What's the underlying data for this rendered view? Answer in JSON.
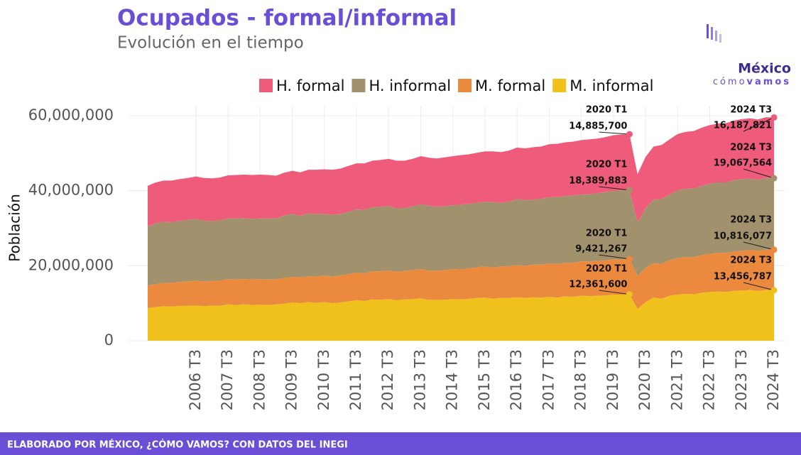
{
  "header": {
    "title": "Ocupados - formal/informal",
    "subtitle": "Evolución en el tiempo"
  },
  "logo": {
    "top": "México",
    "bottom_light": "cómo",
    "bottom_bold": "vamos"
  },
  "footer": "ELABORADO POR MÉXICO, ¿CÓMO VAMOS? CON DATOS DEL INEGI",
  "chart_data": {
    "type": "stacked_area",
    "y_label": "Población",
    "grid": true,
    "categories": [
      "2005 T1",
      "2005 T2",
      "2005 T3",
      "2005 T4",
      "2006 T1",
      "2006 T2",
      "2006 T3",
      "2006 T4",
      "2007 T1",
      "2007 T2",
      "2007 T3",
      "2007 T4",
      "2008 T1",
      "2008 T2",
      "2008 T3",
      "2008 T4",
      "2009 T1",
      "2009 T2",
      "2009 T3",
      "2009 T4",
      "2010 T1",
      "2010 T2",
      "2010 T3",
      "2010 T4",
      "2011 T1",
      "2011 T2",
      "2011 T3",
      "2011 T4",
      "2012 T1",
      "2012 T2",
      "2012 T3",
      "2012 T4",
      "2013 T1",
      "2013 T2",
      "2013 T3",
      "2013 T4",
      "2014 T1",
      "2014 T2",
      "2014 T3",
      "2014 T4",
      "2015 T1",
      "2015 T2",
      "2015 T3",
      "2015 T4",
      "2016 T1",
      "2016 T2",
      "2016 T3",
      "2016 T4",
      "2017 T1",
      "2017 T2",
      "2017 T3",
      "2017 T4",
      "2018 T1",
      "2018 T2",
      "2018 T3",
      "2018 T4",
      "2019 T1",
      "2019 T2",
      "2019 T3",
      "2019 T4",
      "2020 T1",
      "2020 T2",
      "2020 T3",
      "2020 T4",
      "2021 T1",
      "2021 T2",
      "2021 T3",
      "2021 T4",
      "2022 T1",
      "2022 T2",
      "2022 T3",
      "2022 T4",
      "2023 T1",
      "2023 T2",
      "2023 T3",
      "2023 T4",
      "2024 T1",
      "2024 T2",
      "2024 T3"
    ],
    "xticks": [
      "2006 T3",
      "2007 T3",
      "2008 T3",
      "2009 T3",
      "2010 T3",
      "2011 T3",
      "2012 T3",
      "2013 T3",
      "2014 T3",
      "2015 T3",
      "2016 T3",
      "2017 T3",
      "2018 T3",
      "2019 T3",
      "2020 T3",
      "2021 T3",
      "2022 T3",
      "2023 T3",
      "2024 T3"
    ],
    "ylim": [
      0,
      60000000
    ],
    "yticks": [
      0,
      {
        "value": 20000000,
        "label": "20,000,000"
      },
      {
        "value": 40000000,
        "label": "40,000,000"
      },
      {
        "value": 60000000,
        "label": "60,000,000"
      }
    ],
    "series": [
      {
        "name": "H. formal",
        "color": "#ef5b7a",
        "values": [
          10800000,
          10900000,
          11000000,
          11100000,
          11100000,
          11200000,
          11300000,
          11400000,
          11400000,
          11400000,
          11500000,
          11600000,
          11600000,
          11700000,
          11700000,
          11600000,
          11400000,
          11400000,
          11500000,
          11600000,
          11600000,
          11800000,
          11900000,
          12000000,
          12100000,
          12200000,
          12300000,
          12400000,
          12400000,
          12500000,
          12600000,
          12600000,
          12600000,
          12700000,
          12800000,
          12800000,
          12900000,
          13000000,
          13100000,
          13200000,
          13200000,
          13300000,
          13400000,
          13500000,
          13500000,
          13600000,
          13700000,
          13800000,
          13900000,
          14000000,
          14100000,
          14200000,
          14300000,
          14400000,
          14500000,
          14600000,
          14600000,
          14700000,
          14800000,
          14900000,
          14885700,
          12900000,
          13600000,
          14200000,
          14400000,
          14700000,
          15000000,
          15200000,
          15300000,
          15500000,
          15600000,
          15700000,
          15800000,
          15900000,
          16000000,
          16100000,
          16100000,
          16200000,
          16187821
        ],
        "value_labels": [
          null,
          null,
          null,
          null,
          null,
          null,
          null,
          null,
          null,
          null,
          null,
          null,
          null,
          null,
          null,
          null,
          null,
          null,
          null,
          null,
          null,
          null,
          null,
          null,
          null,
          null,
          null,
          null,
          null,
          null,
          null,
          null,
          null,
          null,
          null,
          null,
          null,
          null,
          null,
          null,
          null,
          null,
          null,
          null,
          null,
          null,
          null,
          null,
          null,
          null,
          null,
          null,
          null,
          null,
          null,
          null,
          null,
          null,
          null,
          null,
          "14,885,700",
          null,
          null,
          null,
          null,
          null,
          null,
          null,
          null,
          null,
          null,
          null,
          null,
          null,
          null,
          null,
          null,
          null,
          "16,187,821"
        ]
      },
      {
        "name": "H. informal",
        "color": "#a1926d",
        "values": [
          15800000,
          16200000,
          16300000,
          16200000,
          16300000,
          16400000,
          16500000,
          16200000,
          15900000,
          16100000,
          16100000,
          16300000,
          16200000,
          16200000,
          16100000,
          16300000,
          16200000,
          16700000,
          16800000,
          16400000,
          16800000,
          16700000,
          16400000,
          16500000,
          16400000,
          16600000,
          16800000,
          16900000,
          17100000,
          17200000,
          17200000,
          17000000,
          16800000,
          17000000,
          17300000,
          17300000,
          17000000,
          17100000,
          17000000,
          17300000,
          17200000,
          17200000,
          17300000,
          17500000,
          17000000,
          17200000,
          17600000,
          17500000,
          17400000,
          17500000,
          17700000,
          17800000,
          17800000,
          17900000,
          17800000,
          18000000,
          18000000,
          18200000,
          18300000,
          18400000,
          18389883,
          14200000,
          16000000,
          16900000,
          17300000,
          17500000,
          18100000,
          18200000,
          18300000,
          18500000,
          18700000,
          18800000,
          18800000,
          19000000,
          19100000,
          19000000,
          18900000,
          19100000,
          19067564
        ],
        "value_labels": [
          null,
          null,
          null,
          null,
          null,
          null,
          null,
          null,
          null,
          null,
          null,
          null,
          null,
          null,
          null,
          null,
          null,
          null,
          null,
          null,
          null,
          null,
          null,
          null,
          null,
          null,
          null,
          null,
          null,
          null,
          null,
          null,
          null,
          null,
          null,
          null,
          null,
          null,
          null,
          null,
          null,
          null,
          null,
          null,
          null,
          null,
          null,
          null,
          null,
          null,
          null,
          null,
          null,
          null,
          null,
          null,
          null,
          null,
          null,
          null,
          "18,389,883",
          null,
          null,
          null,
          null,
          null,
          null,
          null,
          null,
          null,
          null,
          null,
          null,
          null,
          null,
          null,
          null,
          null,
          "19,067,564"
        ]
      },
      {
        "name": "M. formal",
        "color": "#eb8a3f",
        "values": [
          6000000,
          6100000,
          6200000,
          6300000,
          6400000,
          6500000,
          6600000,
          6600000,
          6600000,
          6700000,
          6800000,
          6800000,
          6800000,
          6800000,
          6900000,
          6800000,
          6700000,
          6800000,
          6800000,
          6900000,
          6900000,
          7000000,
          7100000,
          7100000,
          7200000,
          7300000,
          7400000,
          7400000,
          7500000,
          7600000,
          7600000,
          7600000,
          7600000,
          7700000,
          7800000,
          7800000,
          7800000,
          7900000,
          8000000,
          8000000,
          8100000,
          8200000,
          8300000,
          8300000,
          8400000,
          8500000,
          8600000,
          8600000,
          8700000,
          8800000,
          8900000,
          9000000,
          9000000,
          9100000,
          9200000,
          9200000,
          9300000,
          9300000,
          9400000,
          9400000,
          9421267,
          8800000,
          9100000,
          9200000,
          9300000,
          9500000,
          9700000,
          9800000,
          9900000,
          10000000,
          10200000,
          10300000,
          10400000,
          10500000,
          10600000,
          10700000,
          10700000,
          10800000,
          10816077
        ],
        "value_labels": [
          null,
          null,
          null,
          null,
          null,
          null,
          null,
          null,
          null,
          null,
          null,
          null,
          null,
          null,
          null,
          null,
          null,
          null,
          null,
          null,
          null,
          null,
          null,
          null,
          null,
          null,
          null,
          null,
          null,
          null,
          null,
          null,
          null,
          null,
          null,
          null,
          null,
          null,
          null,
          null,
          null,
          null,
          null,
          null,
          null,
          null,
          null,
          null,
          null,
          null,
          null,
          null,
          null,
          null,
          null,
          null,
          null,
          null,
          null,
          null,
          "9,421,267",
          null,
          null,
          null,
          null,
          null,
          null,
          null,
          null,
          null,
          null,
          null,
          null,
          null,
          null,
          null,
          null,
          null,
          "10,816,077"
        ]
      },
      {
        "name": "M. informal",
        "color": "#f0c01c",
        "values": [
          8700000,
          9000000,
          9200000,
          9100000,
          9300000,
          9300000,
          9400000,
          9200000,
          9400000,
          9300000,
          9700000,
          9500000,
          9700000,
          9500000,
          9600000,
          9500000,
          9700000,
          9900000,
          10200000,
          10000000,
          10300000,
          10100000,
          10300000,
          10000000,
          10200000,
          10500000,
          10800000,
          10600000,
          11000000,
          10900000,
          11100000,
          10800000,
          11000000,
          11100000,
          11300000,
          10900000,
          10900000,
          10900000,
          11100000,
          11000000,
          11200000,
          11400000,
          11500000,
          11200000,
          11400000,
          11400000,
          11600000,
          11400000,
          11600000,
          11500000,
          11700000,
          11500000,
          11800000,
          11700000,
          12000000,
          11900000,
          12000000,
          12100000,
          12300000,
          12300000,
          12361600,
          8500000,
          10300000,
          11500000,
          11200000,
          12000000,
          12300000,
          12500000,
          12400000,
          12800000,
          13000000,
          13100000,
          13000000,
          13300000,
          13400000,
          13500000,
          13300000,
          13500000,
          13456787
        ],
        "value_labels": [
          null,
          null,
          null,
          null,
          null,
          null,
          null,
          null,
          null,
          null,
          null,
          null,
          null,
          null,
          null,
          null,
          null,
          null,
          null,
          null,
          null,
          null,
          null,
          null,
          null,
          null,
          null,
          null,
          null,
          null,
          null,
          null,
          null,
          null,
          null,
          null,
          null,
          null,
          null,
          null,
          null,
          null,
          null,
          null,
          null,
          null,
          null,
          null,
          null,
          null,
          null,
          null,
          null,
          null,
          null,
          null,
          null,
          null,
          null,
          null,
          "12,361,600",
          null,
          null,
          null,
          null,
          null,
          null,
          null,
          null,
          null,
          null,
          null,
          null,
          null,
          null,
          null,
          null,
          null,
          "13,456,787"
        ]
      }
    ]
  }
}
